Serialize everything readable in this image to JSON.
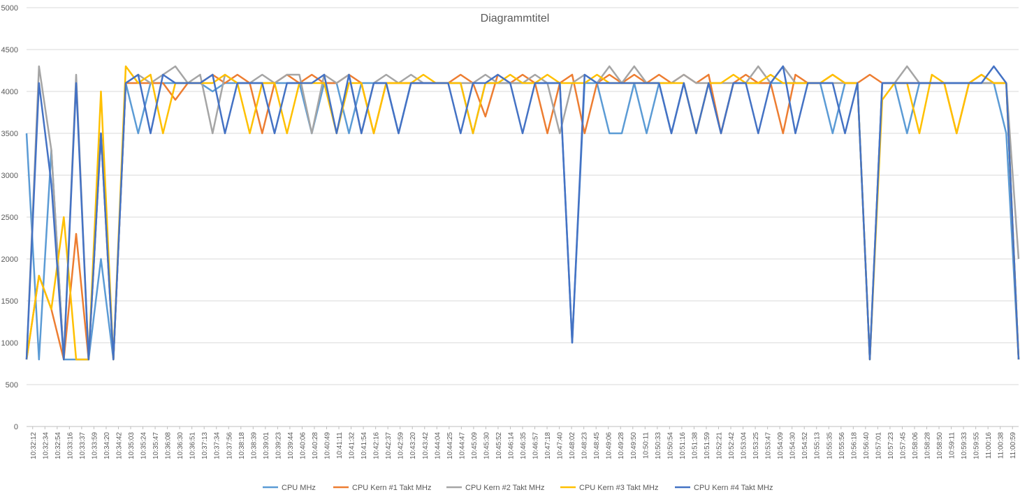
{
  "chart_data": {
    "type": "line",
    "title": "Diagrammtitel",
    "xlabel": "",
    "ylabel": "",
    "ylim": [
      0,
      5000
    ],
    "yticks": [
      0,
      500,
      1000,
      1500,
      2000,
      2500,
      3000,
      3500,
      4000,
      4500,
      5000
    ],
    "grid": true,
    "legend_position": "bottom",
    "x_tick_labels": [
      "10:32:12",
      "10:32:34",
      "10:32:54",
      "10:33:16",
      "10:33:37",
      "10:33:59",
      "10:34:20",
      "10:34:42",
      "10:35:03",
      "10:35:24",
      "10:35:47",
      "10:36:08",
      "10:36:30",
      "10:36:51",
      "10:37:13",
      "10:37:34",
      "10:37:56",
      "10:38:18",
      "10:38:39",
      "10:39:01",
      "10:39:23",
      "10:39:44",
      "10:40:06",
      "10:40:28",
      "10:40:49",
      "10:41:11",
      "10:41:32",
      "10:41:54",
      "10:42:16",
      "10:42:37",
      "10:42:59",
      "10:43:20",
      "10:43:42",
      "10:44:04",
      "10:44:25",
      "10:44:47",
      "10:45:09",
      "10:45:30",
      "10:45:52",
      "10:46:14",
      "10:46:35",
      "10:46:57",
      "10:47:18",
      "10:47:40",
      "10:48:02",
      "10:48:23",
      "10:48:45",
      "10:49:06",
      "10:49:28",
      "10:49:50",
      "10:50:11",
      "10:50:33",
      "10:50:54",
      "10:51:16",
      "10:51:38",
      "10:51:59",
      "10:52:21",
      "10:52:42",
      "10:53:04",
      "10:53:25",
      "10:53:47",
      "10:54:09",
      "10:54:30",
      "10:54:52",
      "10:55:13",
      "10:55:35",
      "10:55:56",
      "10:56:18",
      "10:56:40",
      "10:57:01",
      "10:57:23",
      "10:57:45",
      "10:58:06",
      "10:58:28",
      "10:58:50",
      "10:59:11",
      "10:59:33",
      "10:59:55",
      "11:00:16",
      "11:00:38",
      "11:00:59"
    ],
    "series": [
      {
        "name": "CPU MHz",
        "color": "#5B9BD5",
        "values": [
          3500,
          800,
          3300,
          800,
          800,
          800,
          2000,
          800,
          4100,
          3500,
          4100,
          4100,
          4100,
          4100,
          4100,
          4000,
          4100,
          4100,
          4100,
          4100,
          4100,
          4100,
          4100,
          3500,
          4100,
          4100,
          3500,
          4100,
          4100,
          4100,
          3500,
          4100,
          4100,
          4100,
          4100,
          4100,
          3500,
          4100,
          4100,
          4100,
          4100,
          4100,
          4100,
          4100,
          1000,
          4100,
          4100,
          3500,
          3500,
          4100,
          3500,
          4100,
          3500,
          4100,
          3500,
          4100,
          3500,
          4100,
          4100,
          4100,
          4100,
          4100,
          4100,
          4100,
          4100,
          3500,
          4100,
          4100,
          800,
          4100,
          4100,
          3500,
          4100,
          4100,
          4100,
          4100,
          4100,
          4100,
          4100,
          3500,
          800
        ]
      },
      {
        "name": "CPU Kern #1 Takt MHz",
        "color": "#ED7D31",
        "values": [
          800,
          1800,
          1400,
          800,
          2300,
          800,
          3500,
          800,
          4100,
          4100,
          4100,
          4100,
          3900,
          4100,
          4100,
          4200,
          4100,
          4200,
          4100,
          3500,
          4100,
          4200,
          4100,
          4200,
          4100,
          4100,
          4200,
          4100,
          3500,
          4100,
          4100,
          4100,
          4100,
          4100,
          4100,
          4200,
          4100,
          3700,
          4200,
          4100,
          4200,
          4100,
          3500,
          4100,
          4200,
          3500,
          4100,
          4200,
          4100,
          4200,
          4100,
          4200,
          4100,
          4200,
          4100,
          4200,
          3500,
          4100,
          4200,
          4100,
          4100,
          3500,
          4200,
          4100,
          4100,
          4200,
          4100,
          4100,
          4200,
          4100,
          4100,
          4100,
          4100,
          4100,
          4100,
          3500,
          4100,
          4200,
          4100,
          4100,
          800
        ]
      },
      {
        "name": "CPU Kern #2 Takt MHz",
        "color": "#A5A5A5",
        "values": [
          800,
          4300,
          3300,
          800,
          4200,
          800,
          3500,
          800,
          4100,
          4200,
          4100,
          4200,
          4300,
          4100,
          4200,
          3500,
          4200,
          4100,
          4100,
          4200,
          4100,
          4200,
          4200,
          3500,
          4200,
          4100,
          4200,
          3500,
          4100,
          4200,
          4100,
          4200,
          4100,
          4100,
          4100,
          4100,
          4100,
          4200,
          4100,
          4100,
          4100,
          4200,
          4100,
          3500,
          4100,
          4200,
          4100,
          4300,
          4100,
          4300,
          4100,
          4100,
          4100,
          4200,
          4100,
          4100,
          4100,
          4100,
          4100,
          4300,
          4100,
          4300,
          4100,
          4100,
          4100,
          4100,
          4100,
          4100,
          800,
          4100,
          4100,
          4300,
          4100,
          4100,
          4100,
          4100,
          4100,
          4100,
          4100,
          4100,
          2000
        ]
      },
      {
        "name": "CPU Kern #3 Takt MHz",
        "color": "#FFC000",
        "values": [
          800,
          1800,
          1400,
          2500,
          800,
          800,
          4000,
          800,
          4300,
          4100,
          4200,
          3500,
          4100,
          4100,
          4100,
          4100,
          4200,
          4100,
          3500,
          4100,
          4100,
          3500,
          4100,
          4100,
          4100,
          3500,
          4100,
          4100,
          3500,
          4100,
          4100,
          4100,
          4200,
          4100,
          4100,
          4100,
          3500,
          4100,
          4100,
          4200,
          4100,
          4100,
          4200,
          4100,
          4100,
          4100,
          4200,
          4100,
          4100,
          4100,
          4100,
          4100,
          4100,
          4100,
          3500,
          4100,
          4100,
          4200,
          4100,
          4100,
          4200,
          4100,
          4100,
          4100,
          4100,
          4200,
          4100,
          4100,
          800,
          3900,
          4100,
          4100,
          3500,
          4200,
          4100,
          3500,
          4100,
          4200,
          4100,
          4100,
          800
        ]
      },
      {
        "name": "CPU Kern #4 Takt MHz",
        "color": "#4472C4",
        "values": [
          800,
          4100,
          2900,
          800,
          4100,
          800,
          3500,
          800,
          4100,
          4200,
          3500,
          4200,
          4100,
          4100,
          4100,
          4200,
          3500,
          4100,
          4100,
          4100,
          3500,
          4100,
          4100,
          4100,
          4200,
          3500,
          4200,
          3500,
          4100,
          4100,
          3500,
          4100,
          4100,
          4100,
          4100,
          3500,
          4100,
          4100,
          4200,
          4100,
          3500,
          4100,
          4100,
          4100,
          1000,
          4200,
          4100,
          4100,
          4100,
          4100,
          4100,
          4100,
          3500,
          4100,
          3500,
          4100,
          3500,
          4100,
          4100,
          3500,
          4100,
          4300,
          3500,
          4100,
          4100,
          4100,
          3500,
          4100,
          800,
          4100,
          4100,
          4100,
          4100,
          4100,
          4100,
          4100,
          4100,
          4100,
          4300,
          4100,
          800
        ]
      }
    ]
  }
}
